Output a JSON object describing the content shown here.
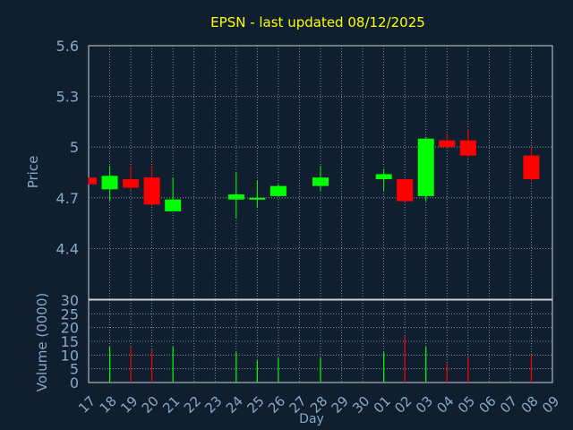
{
  "chart_data": [
    {
      "type": "candlestick",
      "title": "EPSN - last updated 08/12/2025",
      "ylabel": "Price",
      "ylim": [
        4.1,
        5.6
      ],
      "yticks": [
        "4.4",
        "4.7",
        "5",
        "5.3",
        "5.6"
      ],
      "grid": true,
      "colors": {
        "up": "#00ff00",
        "down": "#ff0000",
        "title": "#ffff00",
        "axis_text": "#8aa8c8",
        "grid": "#9aa8b8"
      },
      "candles": [
        {
          "day": "17",
          "open": 4.82,
          "close": 4.78,
          "high": 4.82,
          "low": 4.78
        },
        {
          "day": "18",
          "open": 4.75,
          "close": 4.83,
          "high": 4.89,
          "low": 4.68
        },
        {
          "day": "19",
          "open": 4.81,
          "close": 4.76,
          "high": 4.89,
          "low": 4.74
        },
        {
          "day": "20",
          "open": 4.82,
          "close": 4.66,
          "high": 4.89,
          "low": 4.66
        },
        {
          "day": "21",
          "open": 4.62,
          "close": 4.69,
          "high": 4.82,
          "low": 4.62
        },
        {
          "day": "24",
          "open": 4.69,
          "close": 4.72,
          "high": 4.85,
          "low": 4.58
        },
        {
          "day": "25",
          "open": 4.69,
          "close": 4.7,
          "high": 4.8,
          "low": 4.64
        },
        {
          "day": "26",
          "open": 4.71,
          "close": 4.77,
          "high": 4.78,
          "low": 4.71
        },
        {
          "day": "28",
          "open": 4.77,
          "close": 4.82,
          "high": 4.89,
          "low": 4.74
        },
        {
          "day": "01",
          "open": 4.81,
          "close": 4.84,
          "high": 4.87,
          "low": 4.74
        },
        {
          "day": "02",
          "open": 4.81,
          "close": 4.68,
          "high": 4.81,
          "low": 4.68
        },
        {
          "day": "03",
          "open": 4.71,
          "close": 5.05,
          "high": 5.06,
          "low": 4.68
        },
        {
          "day": "04",
          "open": 5.04,
          "close": 5.0,
          "high": 5.08,
          "low": 4.99
        },
        {
          "day": "05",
          "open": 5.04,
          "close": 4.95,
          "high": 5.11,
          "low": 4.94
        },
        {
          "day": "08",
          "open": 4.95,
          "close": 4.81,
          "high": 5.0,
          "low": 4.8
        }
      ]
    },
    {
      "type": "bar",
      "ylabel": "Volume (0000)",
      "xlabel": "Day",
      "ylim": [
        0,
        30
      ],
      "yticks": [
        "0",
        "5",
        "10",
        "15",
        "20",
        "25",
        "30"
      ],
      "categories": [
        "17",
        "18",
        "19",
        "20",
        "21",
        "22",
        "23",
        "24",
        "25",
        "26",
        "27",
        "28",
        "29",
        "30",
        "01",
        "02",
        "03",
        "04",
        "05",
        "06",
        "07",
        "08",
        "09"
      ],
      "values": [
        0,
        13,
        13,
        12,
        13,
        0,
        0,
        11,
        8,
        9,
        0,
        9,
        0,
        0,
        11,
        17,
        13,
        7,
        9,
        0,
        0,
        10,
        0
      ],
      "bar_colors": [
        "",
        "green",
        "red",
        "red",
        "green",
        "",
        "",
        "green",
        "green",
        "green",
        "",
        "green",
        "",
        "",
        "green",
        "red",
        "green",
        "red",
        "red",
        "",
        "",
        "red",
        ""
      ]
    }
  ]
}
